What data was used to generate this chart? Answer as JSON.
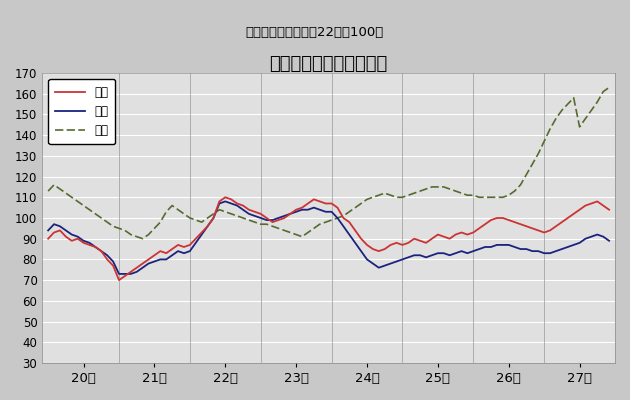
{
  "title": "鳥取県鉱工業指数の推移",
  "subtitle": "（季節調整済、平成22年＝100）",
  "title_fontsize": 13,
  "subtitle_fontsize": 9.5,
  "ylabel_fontsize": 8.5,
  "xlabel_fontsize": 9.5,
  "ylim": [
    30,
    170
  ],
  "yticks": [
    30,
    40,
    50,
    60,
    70,
    80,
    90,
    100,
    110,
    120,
    130,
    140,
    150,
    160,
    170
  ],
  "bg_color": "#c8c8c8",
  "plot_bg_color": "#e0e0e0",
  "grid_color": "#ffffff",
  "production_color": "#cc3333",
  "shipment_color": "#1a237e",
  "inventory_color": "#556b2f",
  "x_tick_labels": [
    "20年",
    "21年",
    "22年",
    "23年",
    "24年",
    "25年",
    "26年",
    "27年"
  ],
  "production": [
    90,
    93,
    94,
    91,
    89,
    90,
    88,
    87,
    86,
    84,
    80,
    77,
    70,
    72,
    74,
    76,
    78,
    80,
    82,
    84,
    83,
    85,
    87,
    86,
    87,
    90,
    93,
    96,
    100,
    108,
    110,
    109,
    107,
    106,
    104,
    103,
    102,
    100,
    98,
    99,
    100,
    102,
    104,
    105,
    107,
    109,
    108,
    107,
    107,
    105,
    100,
    98,
    94,
    90,
    87,
    85,
    84,
    85,
    87,
    88,
    87,
    88,
    90,
    89,
    88,
    90,
    92,
    91,
    90,
    92,
    93,
    92,
    93,
    95,
    97,
    99,
    100,
    100,
    99,
    98,
    97,
    96,
    95,
    94,
    93,
    94,
    96,
    98,
    100,
    102,
    104,
    106,
    107,
    108,
    106,
    104
  ],
  "shipment": [
    94,
    97,
    96,
    94,
    92,
    91,
    89,
    88,
    86,
    84,
    82,
    79,
    73,
    73,
    73,
    74,
    76,
    78,
    79,
    80,
    80,
    82,
    84,
    83,
    84,
    88,
    92,
    96,
    100,
    107,
    108,
    107,
    106,
    104,
    102,
    101,
    100,
    99,
    99,
    100,
    101,
    102,
    103,
    104,
    104,
    105,
    104,
    103,
    103,
    100,
    96,
    92,
    88,
    84,
    80,
    78,
    76,
    77,
    78,
    79,
    80,
    81,
    82,
    82,
    81,
    82,
    83,
    83,
    82,
    83,
    84,
    83,
    84,
    85,
    86,
    86,
    87,
    87,
    87,
    86,
    85,
    85,
    84,
    84,
    83,
    83,
    84,
    85,
    86,
    87,
    88,
    90,
    91,
    92,
    91,
    89
  ],
  "inventory": [
    113,
    116,
    114,
    112,
    110,
    108,
    106,
    104,
    102,
    100,
    98,
    96,
    95,
    94,
    92,
    91,
    90,
    92,
    95,
    98,
    103,
    106,
    104,
    102,
    100,
    99,
    98,
    100,
    102,
    104,
    103,
    102,
    101,
    100,
    99,
    98,
    97,
    97,
    96,
    95,
    94,
    93,
    92,
    91,
    93,
    95,
    97,
    98,
    99,
    100,
    101,
    103,
    105,
    107,
    109,
    110,
    111,
    112,
    111,
    110,
    110,
    111,
    112,
    113,
    114,
    115,
    115,
    115,
    114,
    113,
    112,
    111,
    111,
    110,
    110,
    110,
    110,
    110,
    111,
    113,
    116,
    121,
    126,
    131,
    137,
    143,
    148,
    152,
    155,
    158,
    144,
    148,
    152,
    156,
    161,
    163
  ]
}
